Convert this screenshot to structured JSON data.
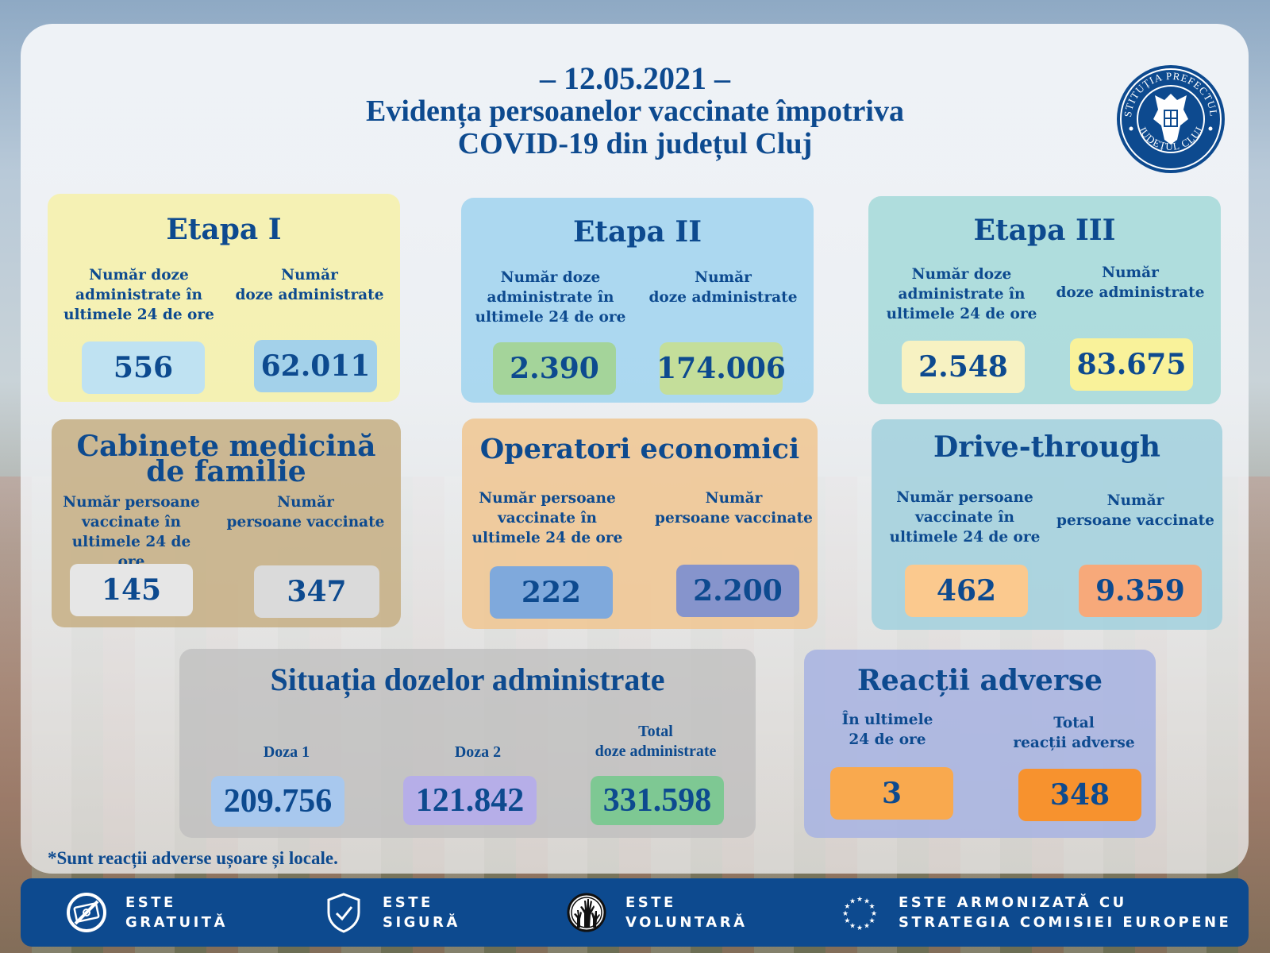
{
  "header": {
    "date": "– 12.05.2021 –",
    "title_line1": "Evidența persoanelor vaccinate împotriva",
    "title_line2": "COVID-19 din județul Cluj"
  },
  "logo": {
    "top_text": "INSTITUȚIA PREFECTULUI",
    "bottom_text": "JUDEȚUL CLUJ",
    "icon": "coat-of-arms-icon"
  },
  "cards": {
    "etapa1": {
      "title": "Etapa I",
      "label_left": "Număr doze\nadministrate în\nultimele 24 de ore",
      "label_right": "Număr\ndoze administrate",
      "value_left": "556",
      "value_right": "62.011"
    },
    "etapa2": {
      "title": "Etapa II",
      "label_left": "Număr doze\nadministrate în\nultimele 24 de ore",
      "label_right": "Număr\ndoze administrate",
      "value_left": "2.390",
      "value_right": "174.006"
    },
    "etapa3": {
      "title": "Etapa III",
      "label_left": "Număr doze\nadministrate în\nultimele 24 de ore",
      "label_right": "Număr\ndoze administrate",
      "value_left": "2.548",
      "value_right": "83.675"
    },
    "cabinete": {
      "title": "Cabinete medicină\nde familie",
      "label_left": "Număr persoane\nvaccinate în\nultimele 24 de ore",
      "label_right": "Număr\npersoane vaccinate",
      "value_left": "145",
      "value_right": "347"
    },
    "operatori": {
      "title": "Operatori economici",
      "label_left": "Număr persoane\nvaccinate în\nultimele 24 de ore",
      "label_right": "Număr\npersoane vaccinate",
      "value_left": "222",
      "value_right": "2.200"
    },
    "drive": {
      "title": "Drive-through",
      "label_left": "Număr persoane\nvaccinate în\nultimele 24 de ore",
      "label_right": "Număr\npersoane vaccinate",
      "value_left": "462",
      "value_right": "9.359"
    },
    "situatia": {
      "title": "Situația dozelor administrate",
      "label_doza1": "Doza 1",
      "label_doza2": "Doza 2",
      "label_total": "Total\ndoze administrate",
      "value_doza1": "209.756",
      "value_doza2": "121.842",
      "value_total": "331.598"
    },
    "reactii": {
      "title": "Reacții adverse",
      "label_left": "În ultimele\n24 de ore",
      "label_right": "Total\nreacții adverse",
      "value_left": "3",
      "value_right": "348"
    }
  },
  "footnote": "*Sunt reacții adverse ușoare și locale.",
  "footer": [
    {
      "icon": "no-money-icon",
      "text": "ESTE\nGRATUITĂ"
    },
    {
      "icon": "shield-check-icon",
      "text": "ESTE\nSIGURĂ"
    },
    {
      "icon": "raised-hands-icon",
      "text": "ESTE\nVOLUNTARĂ"
    },
    {
      "icon": "eu-stars-icon",
      "text": "ESTE ARMONIZATĂ CU\nSTRATEGIA COMISIEI EUROPENE"
    }
  ],
  "colors": {
    "text_primary": "#0d4a8f",
    "footer_bg": "#0d4a8f",
    "etapa1_bg": "#f6f1b4",
    "etapa2_bg": "#a6d6ee",
    "etapa3_bg": "#a9dcdc",
    "cabinete_bg": "#cbb48c",
    "operatori_bg": "#f0c99a",
    "drive_bg": "#a8d3de",
    "situatia_bg": "#c9c9c9",
    "reactii_bg": "#a9b6e0"
  }
}
